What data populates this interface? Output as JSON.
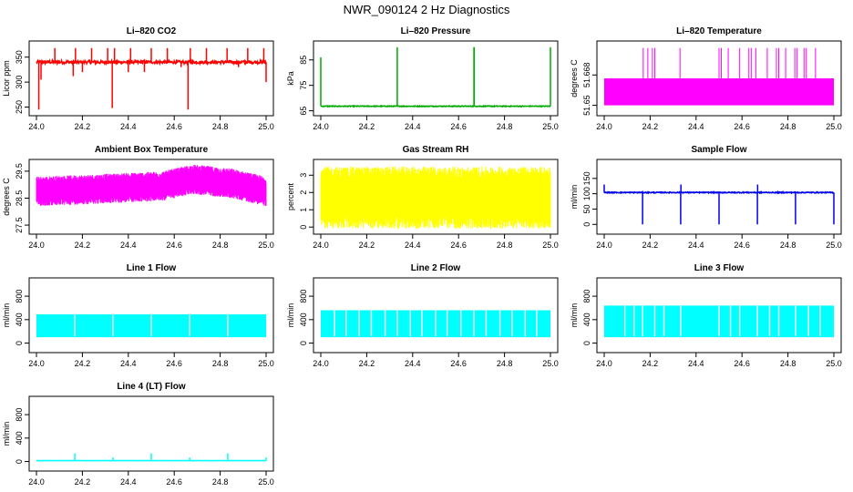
{
  "figure": {
    "title": "NWR_090124  2 Hz Diagnostics"
  },
  "chart_data": [
    {
      "id": "co2",
      "type": "line",
      "title": "Li–820 CO2",
      "ylabel": "Licor ppm",
      "color": "#ff0000",
      "xlim": [
        24.0,
        25.0
      ],
      "ylim": [
        240,
        375
      ],
      "xticks": [
        24.0,
        24.2,
        24.4,
        24.6,
        24.8,
        25.0
      ],
      "xtick_labels": [
        "24.0",
        "24.2",
        "24.4",
        "24.6",
        "24.8",
        "25.0"
      ],
      "yticks": [
        250,
        300,
        350
      ],
      "ytick_labels": [
        "250",
        "300",
        "350"
      ],
      "gen": {
        "mode": "spiky",
        "base": 340,
        "noise": 3,
        "spikes": [
          [
            24.01,
            245
          ],
          [
            24.02,
            305
          ],
          [
            24.08,
            368
          ],
          [
            24.16,
            312
          ],
          [
            24.17,
            368
          ],
          [
            24.2,
            320
          ],
          [
            24.24,
            368
          ],
          [
            24.31,
            368
          ],
          [
            24.33,
            248
          ],
          [
            24.34,
            368
          ],
          [
            24.4,
            320
          ],
          [
            24.41,
            368
          ],
          [
            24.47,
            320
          ],
          [
            24.5,
            368
          ],
          [
            24.57,
            368
          ],
          [
            24.63,
            330
          ],
          [
            24.66,
            245
          ],
          [
            24.67,
            368
          ],
          [
            24.74,
            368
          ],
          [
            24.83,
            368
          ],
          [
            24.88,
            330
          ],
          [
            24.92,
            368
          ],
          [
            24.99,
            368
          ],
          [
            25.0,
            300
          ]
        ]
      }
    },
    {
      "id": "pressure",
      "type": "line",
      "title": "Li–820 Pressure",
      "ylabel": "kPa",
      "color": "#00aa00",
      "xlim": [
        24.0,
        25.0
      ],
      "ylim": [
        64.5,
        91
      ],
      "xticks": [
        24.0,
        24.2,
        24.4,
        24.6,
        24.8,
        25.0
      ],
      "xtick_labels": [
        "24.0",
        "24.2",
        "24.4",
        "24.6",
        "24.8",
        "25.0"
      ],
      "yticks": [
        65,
        75,
        85
      ],
      "ytick_labels": [
        "65",
        "75",
        "85"
      ],
      "gen": {
        "mode": "spiky",
        "base": 66.8,
        "noise": 0.15,
        "spikes": [
          [
            24.0,
            86
          ],
          [
            24.333,
            90
          ],
          [
            24.667,
            90
          ],
          [
            24.668,
            90
          ],
          [
            25.0,
            90
          ]
        ]
      }
    },
    {
      "id": "licor-temp",
      "type": "bars",
      "title": "Li–820 Temperature",
      "ylabel": "degrees C",
      "color": "#ff00ff",
      "xlim": [
        24.0,
        25.0
      ],
      "ylim": [
        51.646,
        51.686
      ],
      "xticks": [
        24.0,
        24.2,
        24.4,
        24.6,
        24.8,
        25.0
      ],
      "xtick_labels": [
        "24.0",
        "24.2",
        "24.4",
        "24.6",
        "24.8",
        "25.0"
      ],
      "yticks": [
        51.65,
        51.668
      ],
      "ytick_labels": [
        "51.65",
        "51.668"
      ],
      "band": [
        51.65,
        51.666
      ],
      "spikes_x": [
        24.17,
        24.19,
        24.21,
        24.22,
        24.33,
        24.5,
        24.51,
        24.54,
        24.59,
        24.63,
        24.64,
        24.66,
        24.71,
        24.75,
        24.76,
        24.79,
        24.83,
        24.84,
        24.87,
        24.88,
        24.92
      ],
      "spike_top": 51.684
    },
    {
      "id": "ambient-temp",
      "type": "line",
      "title": "Ambient Box Temperature",
      "ylabel": "degrees C",
      "color": "#ff00ff",
      "xlim": [
        24.0,
        25.0
      ],
      "ylim": [
        27.3,
        29.8
      ],
      "xticks": [
        24.0,
        24.2,
        24.4,
        24.6,
        24.8,
        25.0
      ],
      "xtick_labels": [
        "24.0",
        "24.2",
        "24.4",
        "24.6",
        "24.8",
        "25.0"
      ],
      "yticks": [
        27.5,
        28.5,
        29.5
      ],
      "ytick_labels": [
        "27.5",
        "28.5",
        "29.5"
      ],
      "gen": {
        "mode": "band",
        "trend": [
          [
            24.0,
            28.75
          ],
          [
            24.3,
            28.85
          ],
          [
            24.55,
            28.95
          ],
          [
            24.68,
            29.2
          ],
          [
            24.85,
            29.05
          ],
          [
            25.0,
            28.75
          ]
        ],
        "halfwidth": 0.3,
        "noise": 0.25
      }
    },
    {
      "id": "rh",
      "type": "line",
      "title": "Gas Stream RH",
      "ylabel": "percent",
      "color": "#ffff00",
      "xlim": [
        24.0,
        25.0
      ],
      "ylim": [
        -0.2,
        3.7
      ],
      "xticks": [
        24.0,
        24.2,
        24.4,
        24.6,
        24.8,
        25.0
      ],
      "xtick_labels": [
        "24.0",
        "24.2",
        "24.4",
        "24.6",
        "24.8",
        "25.0"
      ],
      "yticks": [
        0,
        1,
        2,
        3
      ],
      "ytick_labels": [
        "0",
        "1",
        "2",
        "3"
      ],
      "gen": {
        "mode": "band",
        "trend": [
          [
            24.0,
            1.7
          ],
          [
            25.0,
            1.7
          ]
        ],
        "halfwidth": 1.0,
        "noise": 0.8
      }
    },
    {
      "id": "sample-flow",
      "type": "line",
      "title": "Sample Flow",
      "ylabel": "ml/min",
      "color": "#0000ee",
      "xlim": [
        24.0,
        25.0
      ],
      "ylim": [
        -20,
        200
      ],
      "xticks": [
        24.0,
        24.2,
        24.4,
        24.6,
        24.8,
        25.0
      ],
      "xtick_labels": [
        "24.0",
        "24.2",
        "24.4",
        "24.6",
        "24.8",
        "25.0"
      ],
      "yticks": [
        0,
        50,
        100,
        150
      ],
      "ytick_labels": [
        "0",
        "50",
        "100",
        "150"
      ],
      "gen": {
        "mode": "spiky",
        "base": 104,
        "noise": 1.5,
        "spikes": [
          [
            24.0,
            130
          ],
          [
            24.167,
            0
          ],
          [
            24.333,
            0
          ],
          [
            24.334,
            130
          ],
          [
            24.5,
            0
          ],
          [
            24.667,
            0
          ],
          [
            24.668,
            130
          ],
          [
            24.833,
            0
          ],
          [
            25.0,
            0
          ]
        ]
      }
    },
    {
      "id": "line1",
      "type": "line",
      "title": "Line 1 Flow",
      "ylabel": "ml/min",
      "color": "#00ffff",
      "xlim": [
        24.0,
        25.0
      ],
      "ylim": [
        -100,
        1050
      ],
      "xticks": [
        24.0,
        24.2,
        24.4,
        24.6,
        24.8,
        25.0
      ],
      "xtick_labels": [
        "24.0",
        "24.2",
        "24.4",
        "24.6",
        "24.8",
        "25.0"
      ],
      "yticks": [
        0,
        400,
        800
      ],
      "ytick_labels": [
        "0",
        "400",
        "800"
      ],
      "gen": {
        "mode": "block",
        "low": 100,
        "high": 490,
        "gaps": [
          24.167,
          24.333,
          24.5,
          24.667,
          24.833
        ]
      }
    },
    {
      "id": "line2",
      "type": "line",
      "title": "Line 2 Flow",
      "ylabel": "ml/min",
      "color": "#00ffff",
      "xlim": [
        24.0,
        25.0
      ],
      "ylim": [
        -100,
        1050
      ],
      "xticks": [
        24.0,
        24.2,
        24.4,
        24.6,
        24.8,
        25.0
      ],
      "xtick_labels": [
        "24.0",
        "24.2",
        "24.4",
        "24.6",
        "24.8",
        "25.0"
      ],
      "yticks": [
        0,
        400,
        800
      ],
      "ytick_labels": [
        "0",
        "400",
        "800"
      ],
      "gen": {
        "mode": "block",
        "low": 100,
        "high": 560,
        "gaps": [
          24.06,
          24.11,
          24.167,
          24.22,
          24.28,
          24.333,
          24.39,
          24.44,
          24.5,
          24.55,
          24.61,
          24.667,
          24.72,
          24.78,
          24.833,
          24.89,
          24.94
        ]
      }
    },
    {
      "id": "line3",
      "type": "line",
      "title": "Line 3 Flow",
      "ylabel": "ml/min",
      "color": "#00ffff",
      "xlim": [
        24.0,
        25.0
      ],
      "ylim": [
        -100,
        1050
      ],
      "xticks": [
        24.0,
        24.2,
        24.4,
        24.6,
        24.8,
        25.0
      ],
      "xtick_labels": [
        "24.0",
        "24.2",
        "24.4",
        "24.6",
        "24.8",
        "25.0"
      ],
      "yticks": [
        0,
        400,
        800
      ],
      "ytick_labels": [
        "0",
        "400",
        "800"
      ],
      "gen": {
        "mode": "block",
        "low": 100,
        "high": 640,
        "gaps": [
          24.09,
          24.13,
          24.167,
          24.22,
          24.26,
          24.333,
          24.5,
          24.55,
          24.59,
          24.667,
          24.72,
          24.76,
          24.833,
          24.89,
          24.94
        ]
      }
    },
    {
      "id": "line4",
      "type": "line",
      "title": "Line 4 (LT) Flow",
      "ylabel": "ml/min",
      "color": "#00ffff",
      "xlim": [
        24.0,
        25.0
      ],
      "ylim": [
        -100,
        1050
      ],
      "xticks": [
        24.0,
        24.2,
        24.4,
        24.6,
        24.8,
        25.0
      ],
      "xtick_labels": [
        "24.0",
        "24.2",
        "24.4",
        "24.6",
        "24.8",
        "25.0"
      ],
      "yticks": [
        0,
        400,
        800
      ],
      "ytick_labels": [
        "0",
        "400",
        "800"
      ],
      "gen": {
        "mode": "spiky",
        "base": 15,
        "noise": 1,
        "spikes": [
          [
            24.167,
            140
          ],
          [
            24.333,
            70
          ],
          [
            24.5,
            140
          ],
          [
            24.667,
            70
          ],
          [
            24.833,
            140
          ],
          [
            25.0,
            70
          ]
        ]
      }
    }
  ]
}
